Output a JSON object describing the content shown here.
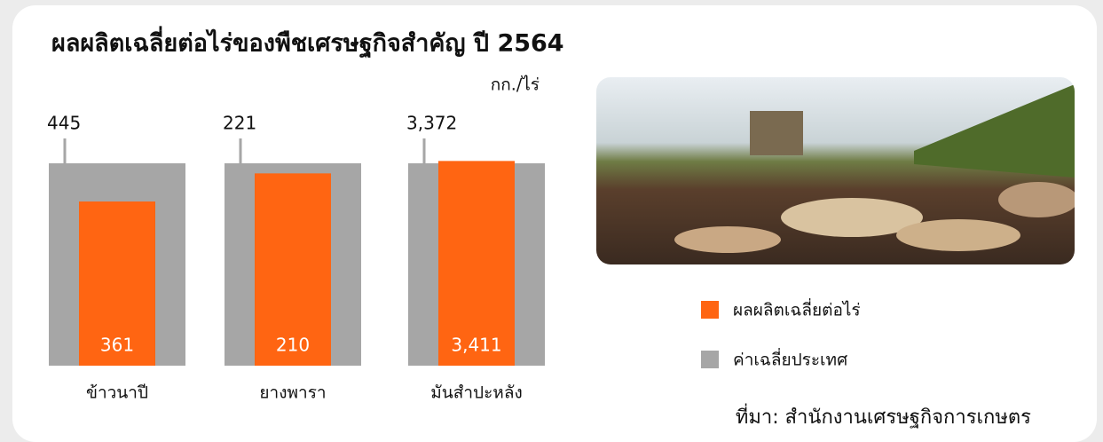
{
  "chart_data": {
    "type": "bar",
    "title": "ผลผลิตเฉลี่ยต่อไร่ของพืชเศรษฐกิจสำคัญ ปี 2564",
    "unit": "กก./ไร่",
    "categories": [
      "ข้าวนาปี",
      "ยางพารา",
      "มันสำปะหลัง"
    ],
    "series": [
      {
        "name": "ผลผลิตเฉลี่ยต่อไร่",
        "color": "#ff6512",
        "values": [
          361,
          210,
          3411
        ],
        "value_labels": [
          "361",
          "210",
          "3,411"
        ]
      },
      {
        "name": "ค่าเฉลี่ยประเทศ",
        "color": "#a6a6a6",
        "values": [
          445,
          221,
          3372
        ],
        "value_labels": [
          "445",
          "221",
          "3,372"
        ]
      }
    ],
    "source": "ที่มา: สำนักงานเศรษฐกิจการเกษตร"
  }
}
